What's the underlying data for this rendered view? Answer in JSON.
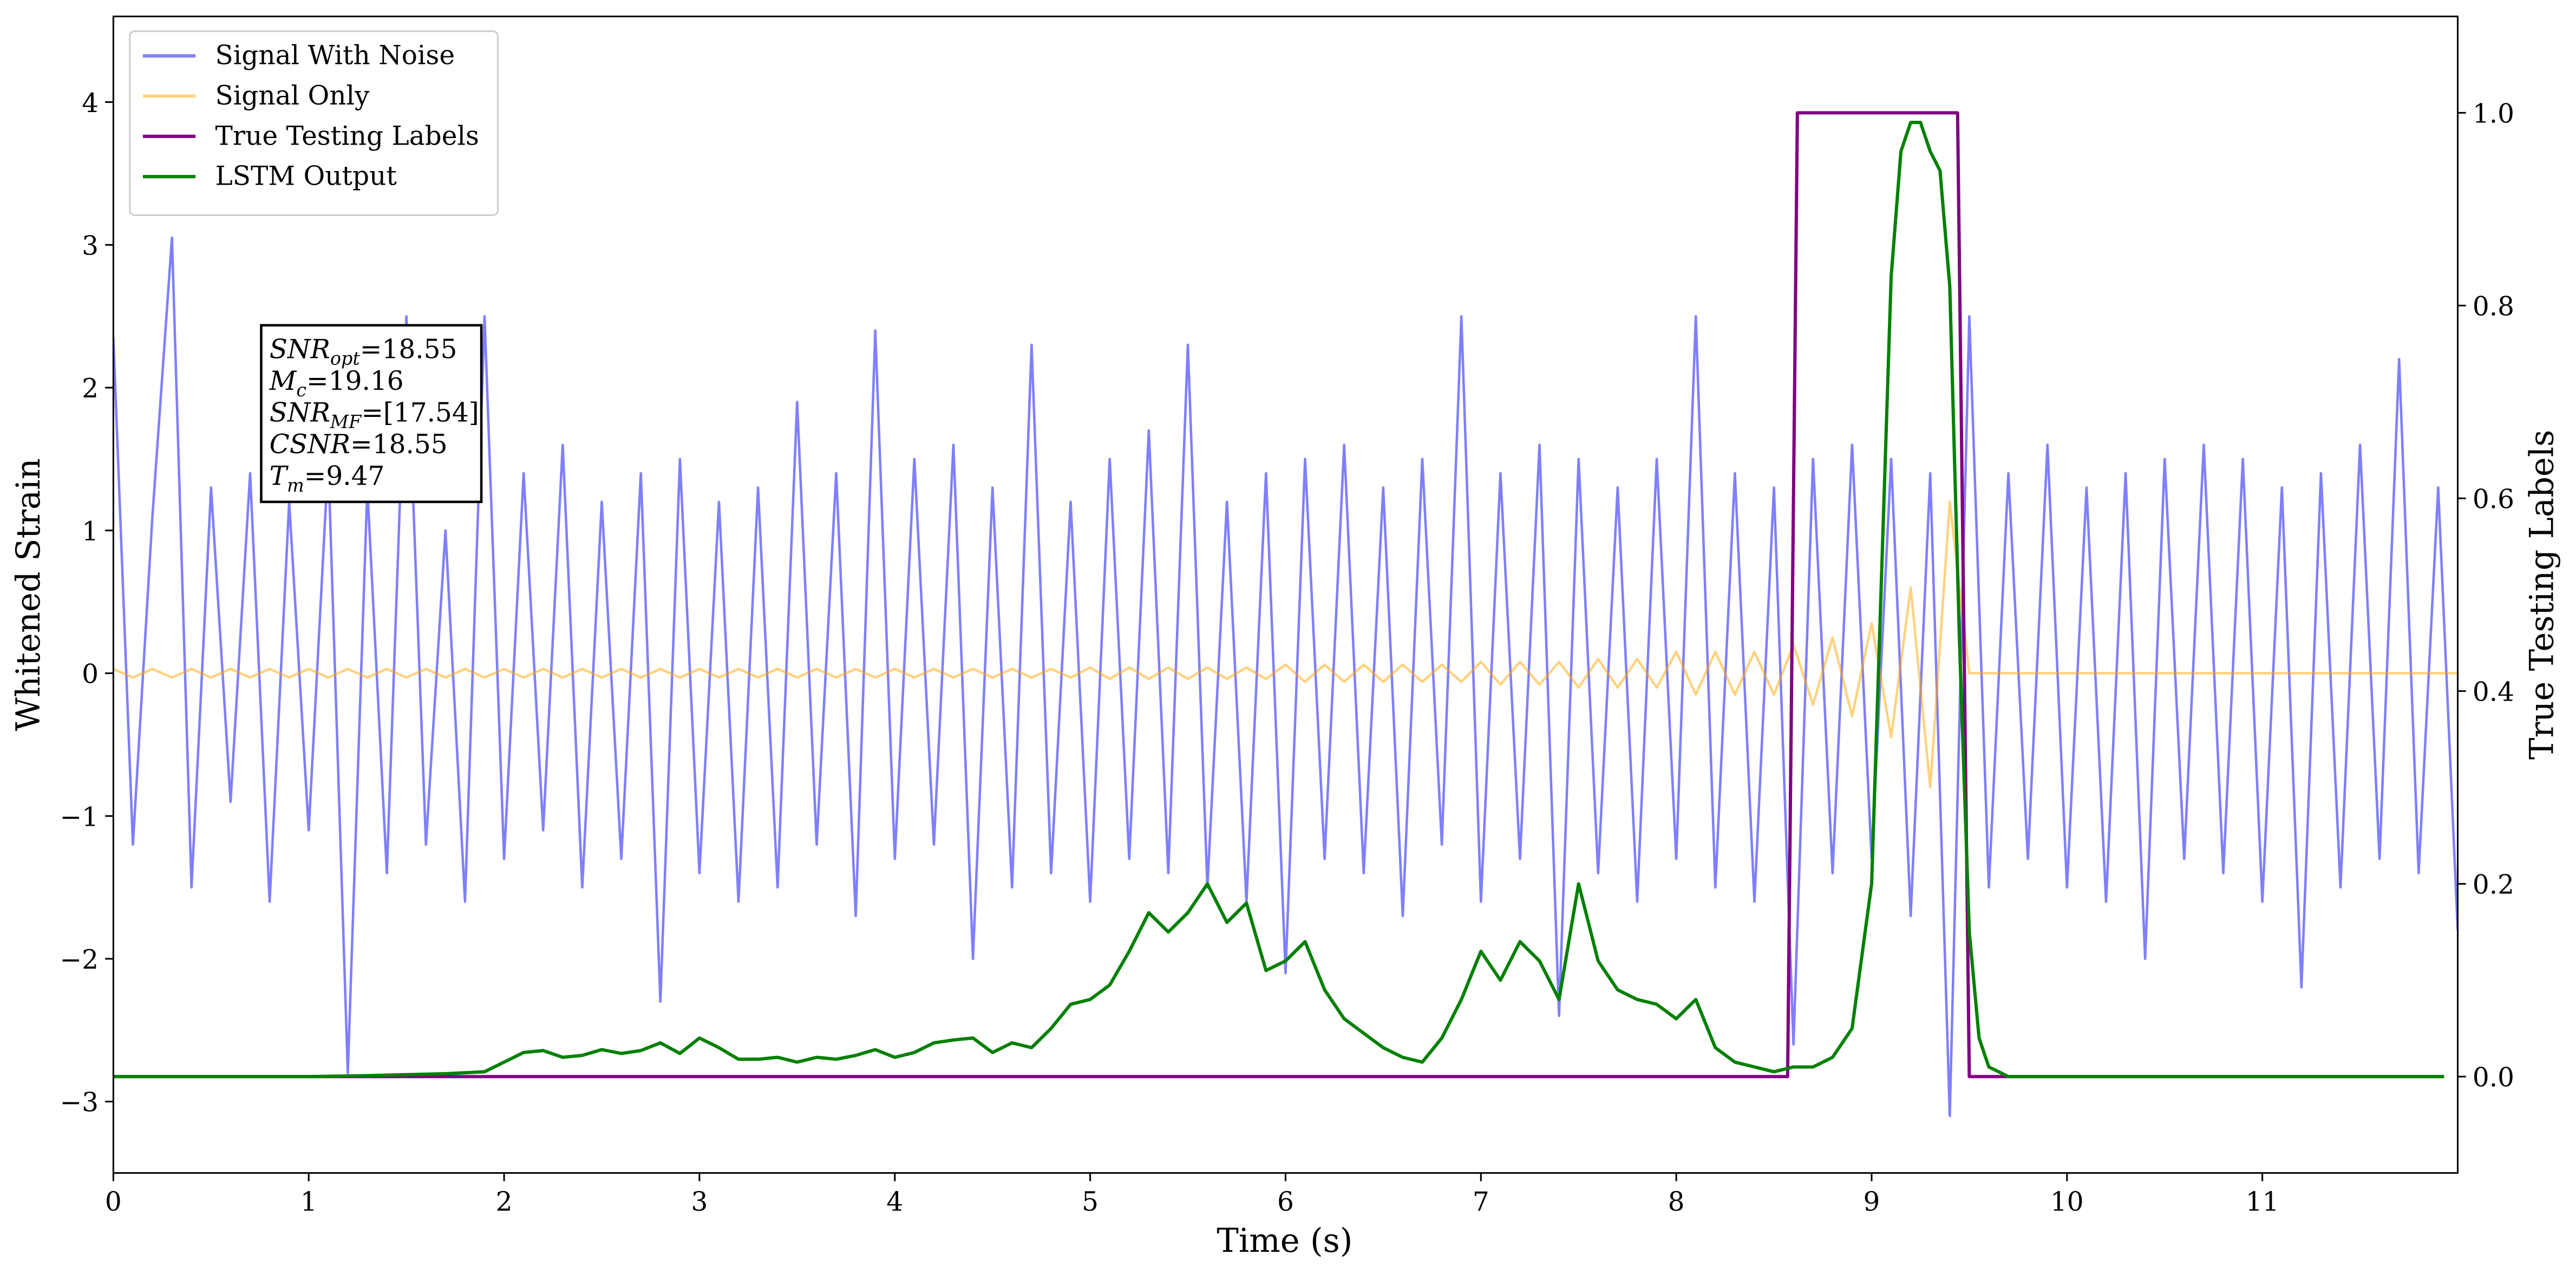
{
  "chart_data": {
    "type": "line",
    "xlabel": "Time (s)",
    "ylabel": "Whitened Strain",
    "y2label": "True Testing Labels",
    "xlim": [
      0,
      12
    ],
    "ylim": [
      -3.5,
      4.6
    ],
    "y2lim": [
      -0.1,
      1.1
    ],
    "xticks": [
      0,
      1,
      2,
      3,
      4,
      5,
      6,
      7,
      8,
      9,
      10,
      11
    ],
    "yticks": [
      {
        "value": -3,
        "label": "−3"
      },
      {
        "value": -2,
        "label": "−2"
      },
      {
        "value": -1,
        "label": "−1"
      },
      0,
      1,
      2,
      3,
      4
    ],
    "y2ticks": [
      {
        "value": 0,
        "label": "0.0"
      },
      0.2,
      0.4,
      0.6,
      0.8,
      {
        "value": 1,
        "label": "1.0"
      }
    ],
    "legend": "upper left",
    "x": [
      0,
      0.1,
      0.2,
      0.3,
      0.4,
      0.5,
      0.6,
      0.7,
      0.8,
      0.9,
      1,
      1.1,
      1.2,
      1.3,
      1.4,
      1.5,
      1.6,
      1.7,
      1.8,
      1.9,
      2,
      2.1,
      2.2,
      2.3,
      2.4,
      2.5,
      2.6,
      2.7,
      2.8,
      2.9,
      3,
      3.1,
      3.2,
      3.3,
      3.4,
      3.5,
      3.6,
      3.7,
      3.8,
      3.9,
      4,
      4.1,
      4.2,
      4.3,
      4.4,
      4.5,
      4.6,
      4.7,
      4.8,
      4.9,
      5,
      5.1,
      5.2,
      5.3,
      5.4,
      5.5,
      5.6,
      5.7,
      5.8,
      5.9,
      6,
      6.1,
      6.2,
      6.3,
      6.4,
      6.5,
      6.6,
      6.7,
      6.8,
      6.9,
      7,
      7.1,
      7.2,
      7.3,
      7.4,
      7.5,
      7.6,
      7.7,
      7.8,
      7.9,
      8,
      8.1,
      8.2,
      8.3,
      8.4,
      8.5,
      8.6,
      8.7,
      8.8,
      8.9,
      9,
      9.1,
      9.2,
      9.3,
      9.4,
      9.5,
      9.6,
      9.7,
      9.8,
      9.9,
      10,
      10.1,
      10.2,
      10.3,
      10.4,
      10.5,
      10.6,
      10.7,
      10.8,
      10.9,
      11,
      11.1,
      11.2,
      11.3,
      11.4,
      11.5,
      11.6,
      11.7,
      11.8,
      11.9,
      12
    ],
    "series": [
      {
        "name": "Signal With Noise",
        "color": "#0000ff",
        "alpha": 0.5,
        "values": [
          2.35,
          -1.2,
          1.1,
          3.05,
          -1.5,
          1.3,
          -0.9,
          1.4,
          -1.6,
          1.2,
          -1.1,
          1.5,
          -2.8,
          1.3,
          -1.4,
          2.5,
          -1.2,
          1.0,
          -1.6,
          2.5,
          -1.3,
          1.4,
          -1.1,
          1.6,
          -1.5,
          1.2,
          -1.3,
          1.4,
          -2.3,
          1.5,
          -1.4,
          1.2,
          -1.6,
          1.3,
          -1.5,
          1.9,
          -1.2,
          1.4,
          -1.7,
          2.4,
          -1.3,
          1.5,
          -1.2,
          1.6,
          -2.0,
          1.3,
          -1.5,
          2.3,
          -1.4,
          1.2,
          -1.6,
          1.5,
          -1.3,
          1.7,
          -1.4,
          2.3,
          -1.5,
          1.2,
          -1.6,
          1.4,
          -2.1,
          1.5,
          -1.3,
          1.6,
          -1.4,
          1.3,
          -1.7,
          1.5,
          -1.2,
          2.5,
          -1.6,
          1.4,
          -1.3,
          1.6,
          -2.4,
          1.5,
          -1.4,
          1.3,
          -1.6,
          1.5,
          -1.3,
          2.5,
          -1.5,
          1.4,
          -1.6,
          1.3,
          -2.6,
          1.5,
          -1.4,
          1.6,
          -1.3,
          1.5,
          -1.7,
          1.4,
          -3.1,
          2.5,
          -1.5,
          1.4,
          -1.3,
          1.6,
          -1.5,
          1.3,
          -1.6,
          1.4,
          -2.0,
          1.5,
          -1.3,
          1.6,
          -1.4,
          1.5,
          -1.6,
          1.3,
          -2.2,
          1.4,
          -1.5,
          1.6,
          -1.3,
          2.2,
          -1.4,
          1.3,
          -1.8
        ]
      },
      {
        "name": "Signal Only",
        "color": "#ffa500",
        "alpha": 0.5,
        "values": [
          0.03,
          -0.03,
          0.03,
          -0.03,
          0.03,
          -0.03,
          0.03,
          -0.03,
          0.03,
          -0.03,
          0.03,
          -0.03,
          0.03,
          -0.03,
          0.03,
          -0.03,
          0.03,
          -0.03,
          0.03,
          -0.03,
          0.03,
          -0.03,
          0.03,
          -0.03,
          0.03,
          -0.03,
          0.03,
          -0.03,
          0.03,
          -0.03,
          0.03,
          -0.03,
          0.03,
          -0.03,
          0.03,
          -0.03,
          0.03,
          -0.03,
          0.03,
          -0.03,
          0.03,
          -0.03,
          0.03,
          -0.03,
          0.03,
          -0.03,
          0.03,
          -0.03,
          0.03,
          -0.03,
          0.04,
          -0.04,
          0.04,
          -0.04,
          0.04,
          -0.04,
          0.04,
          -0.04,
          0.04,
          -0.04,
          0.06,
          -0.06,
          0.06,
          -0.06,
          0.06,
          -0.06,
          0.06,
          -0.06,
          0.06,
          -0.06,
          0.08,
          -0.08,
          0.08,
          -0.08,
          0.08,
          -0.1,
          0.1,
          -0.1,
          0.1,
          -0.1,
          0.15,
          -0.15,
          0.15,
          -0.15,
          0.15,
          -0.15,
          0.2,
          -0.22,
          0.25,
          -0.3,
          0.35,
          -0.45,
          0.6,
          -0.8,
          1.2,
          0,
          0,
          0,
          0,
          0,
          0,
          0,
          0,
          0,
          0,
          0,
          0,
          0,
          0,
          0,
          0,
          0,
          0,
          0,
          0,
          0,
          0,
          0,
          0,
          0,
          0
        ]
      },
      {
        "name": "True Testing Labels",
        "color": "#800080",
        "axis": "y2",
        "x": [
          0,
          8.57,
          8.62,
          9.44,
          9.5,
          11.93
        ],
        "values": [
          0,
          0,
          1,
          1,
          0,
          0
        ]
      },
      {
        "name": "LSTM Output",
        "color": "#008000",
        "axis": "y2",
        "x": [
          0,
          0.5,
          1.0,
          1.3,
          1.5,
          1.7,
          1.9,
          2,
          2.1,
          2.2,
          2.3,
          2.4,
          2.5,
          2.6,
          2.7,
          2.8,
          2.9,
          3,
          3.1,
          3.2,
          3.3,
          3.4,
          3.5,
          3.6,
          3.7,
          3.8,
          3.9,
          4,
          4.1,
          4.2,
          4.3,
          4.4,
          4.5,
          4.6,
          4.7,
          4.8,
          4.9,
          5,
          5.1,
          5.2,
          5.3,
          5.4,
          5.5,
          5.6,
          5.7,
          5.8,
          5.9,
          6,
          6.1,
          6.2,
          6.3,
          6.4,
          6.5,
          6.6,
          6.7,
          6.8,
          6.9,
          7,
          7.1,
          7.2,
          7.3,
          7.4,
          7.5,
          7.6,
          7.7,
          7.8,
          7.9,
          8,
          8.1,
          8.2,
          8.3,
          8.4,
          8.5,
          8.6,
          8.7,
          8.8,
          8.9,
          9,
          9.1,
          9.15,
          9.2,
          9.25,
          9.3,
          9.35,
          9.4,
          9.45,
          9.5,
          9.55,
          9.6,
          9.7,
          10.5,
          11.93
        ],
        "values": [
          0,
          0,
          0,
          0.001,
          0.002,
          0.003,
          0.005,
          0.015,
          0.025,
          0.027,
          0.02,
          0.022,
          0.028,
          0.024,
          0.027,
          0.035,
          0.024,
          0.04,
          0.03,
          0.018,
          0.018,
          0.02,
          0.015,
          0.02,
          0.018,
          0.022,
          0.028,
          0.02,
          0.025,
          0.035,
          0.038,
          0.04,
          0.025,
          0.035,
          0.03,
          0.05,
          0.075,
          0.08,
          0.095,
          0.13,
          0.17,
          0.15,
          0.17,
          0.2,
          0.16,
          0.18,
          0.11,
          0.12,
          0.14,
          0.09,
          0.06,
          0.045,
          0.03,
          0.02,
          0.015,
          0.04,
          0.08,
          0.13,
          0.1,
          0.14,
          0.12,
          0.08,
          0.2,
          0.12,
          0.09,
          0.08,
          0.075,
          0.06,
          0.08,
          0.03,
          0.015,
          0.01,
          0.005,
          0.01,
          0.01,
          0.02,
          0.05,
          0.2,
          0.83,
          0.96,
          0.99,
          0.99,
          0.96,
          0.94,
          0.82,
          0.45,
          0.15,
          0.04,
          0.01,
          0,
          0,
          0
        ]
      }
    ],
    "annotation": [
      {
        "math": "SNR",
        "sub": "opt",
        "rest": "=18.55"
      },
      {
        "math": "M",
        "sub": "c",
        "rest": "=19.16"
      },
      {
        "math": "SNR",
        "sub": "MF",
        "rest": "=[17.54]"
      },
      {
        "math": "CSNR",
        "rest": "=18.55"
      },
      {
        "math": "T",
        "sub": "m",
        "rest": "=9.47"
      }
    ]
  }
}
